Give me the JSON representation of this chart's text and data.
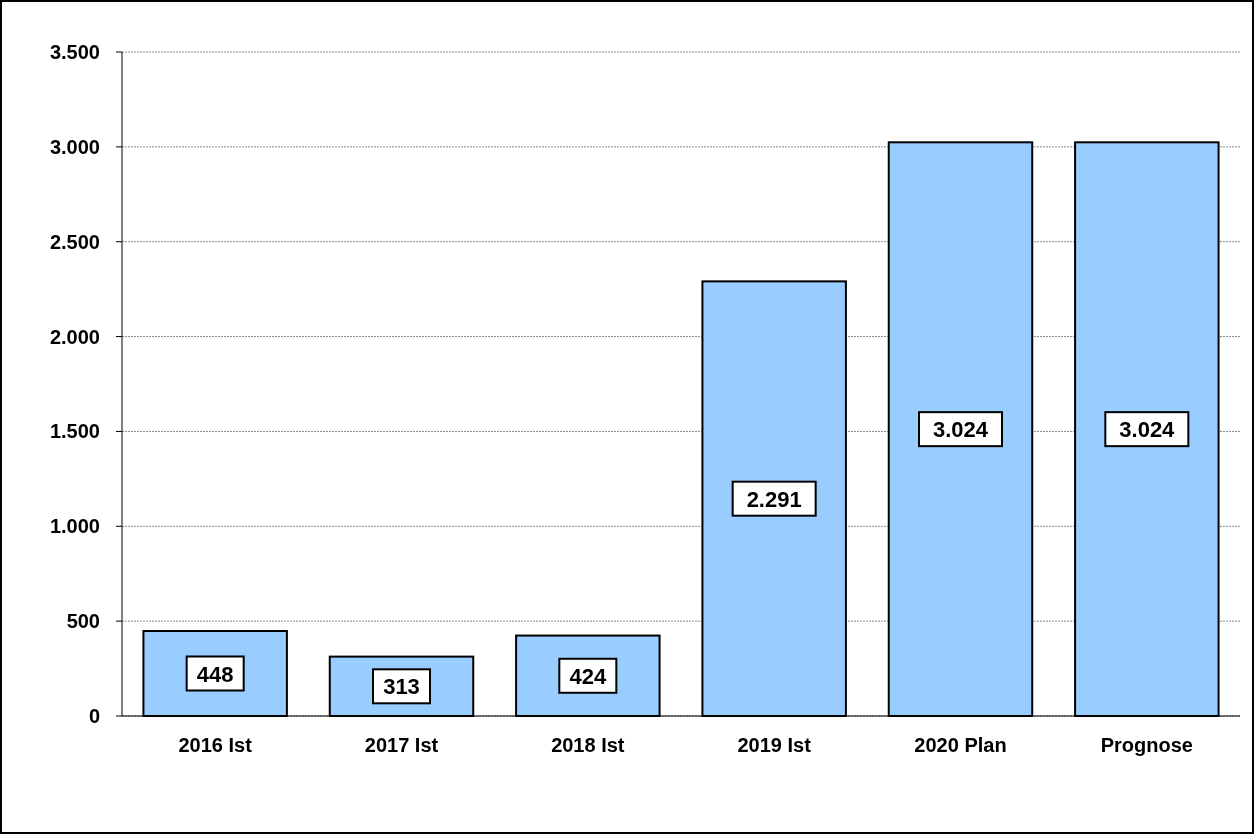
{
  "chart_data": {
    "type": "bar",
    "categories": [
      "2016 Ist",
      "2017 Ist",
      "2018 Ist",
      "2019 Ist",
      "2020 Plan",
      "Prognose"
    ],
    "values": [
      448,
      313,
      424,
      2291,
      3024,
      3024
    ],
    "value_labels": [
      "448",
      "313",
      "424",
      "2.291",
      "3.024",
      "3.024"
    ],
    "colors": [
      "#99ccff",
      "#99ccff",
      "#99ccff",
      "#99ccff",
      "#99ccff",
      "#99ccff"
    ],
    "ylim": [
      0,
      3500
    ],
    "yticks": [
      {
        "value": 0,
        "label": "0"
      },
      {
        "value": 500,
        "label": "500"
      },
      {
        "value": 1000,
        "label": "1.000"
      },
      {
        "value": 1500,
        "label": "1.500"
      },
      {
        "value": 2000,
        "label": "2.000"
      },
      {
        "value": 2500,
        "label": "2.500"
      },
      {
        "value": 3000,
        "label": "3.000"
      },
      {
        "value": 3500,
        "label": "3.500"
      }
    ],
    "grid": "y"
  }
}
